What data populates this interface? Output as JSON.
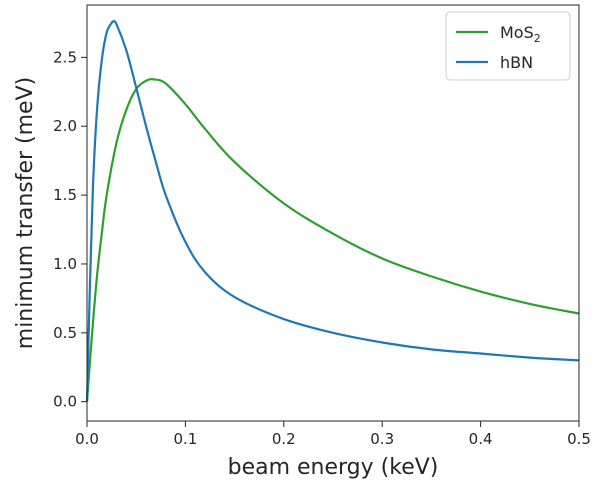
{
  "chart_data": {
    "type": "line",
    "title": "",
    "xlabel": "beam energy (keV)",
    "ylabel": "minimum transfer (meV)",
    "xlim": [
      0.0,
      0.5
    ],
    "ylim": [
      -0.14,
      2.88
    ],
    "x_ticks": [
      "0.0",
      "0.1",
      "0.2",
      "0.3",
      "0.4",
      "0.5"
    ],
    "y_ticks": [
      "0.0",
      "0.5",
      "1.0",
      "1.5",
      "2.0",
      "2.5"
    ],
    "grid": false,
    "legend_position": "top-right",
    "series": [
      {
        "name": "MoS",
        "name_subscript": "2",
        "color": "#2ca02c",
        "peak": {
          "x": 0.068,
          "y": 2.34
        },
        "values": [
          {
            "x": 0.0,
            "y": 0.0
          },
          {
            "x": 0.005,
            "y": 0.48
          },
          {
            "x": 0.01,
            "y": 0.9
          },
          {
            "x": 0.015,
            "y": 1.22
          },
          {
            "x": 0.02,
            "y": 1.5
          },
          {
            "x": 0.03,
            "y": 1.88
          },
          {
            "x": 0.04,
            "y": 2.12
          },
          {
            "x": 0.05,
            "y": 2.27
          },
          {
            "x": 0.06,
            "y": 2.33
          },
          {
            "x": 0.068,
            "y": 2.34
          },
          {
            "x": 0.08,
            "y": 2.31
          },
          {
            "x": 0.1,
            "y": 2.16
          },
          {
            "x": 0.12,
            "y": 1.98
          },
          {
            "x": 0.15,
            "y": 1.74
          },
          {
            "x": 0.2,
            "y": 1.44
          },
          {
            "x": 0.25,
            "y": 1.22
          },
          {
            "x": 0.3,
            "y": 1.04
          },
          {
            "x": 0.35,
            "y": 0.91
          },
          {
            "x": 0.4,
            "y": 0.8
          },
          {
            "x": 0.45,
            "y": 0.71
          },
          {
            "x": 0.5,
            "y": 0.64
          }
        ]
      },
      {
        "name": "hBN",
        "color": "#1f77b4",
        "peak": {
          "x": 0.027,
          "y": 2.76
        },
        "values": [
          {
            "x": 0.0,
            "y": 0.0
          },
          {
            "x": 0.003,
            "y": 0.85
          },
          {
            "x": 0.006,
            "y": 1.55
          },
          {
            "x": 0.01,
            "y": 2.1
          },
          {
            "x": 0.015,
            "y": 2.48
          },
          {
            "x": 0.02,
            "y": 2.68
          },
          {
            "x": 0.025,
            "y": 2.75
          },
          {
            "x": 0.027,
            "y": 2.76
          },
          {
            "x": 0.03,
            "y": 2.74
          },
          {
            "x": 0.04,
            "y": 2.55
          },
          {
            "x": 0.05,
            "y": 2.28
          },
          {
            "x": 0.06,
            "y": 2.0
          },
          {
            "x": 0.07,
            "y": 1.74
          },
          {
            "x": 0.08,
            "y": 1.5
          },
          {
            "x": 0.1,
            "y": 1.16
          },
          {
            "x": 0.12,
            "y": 0.94
          },
          {
            "x": 0.15,
            "y": 0.76
          },
          {
            "x": 0.2,
            "y": 0.6
          },
          {
            "x": 0.25,
            "y": 0.5
          },
          {
            "x": 0.3,
            "y": 0.43
          },
          {
            "x": 0.35,
            "y": 0.38
          },
          {
            "x": 0.4,
            "y": 0.35
          },
          {
            "x": 0.45,
            "y": 0.32
          },
          {
            "x": 0.5,
            "y": 0.3
          }
        ]
      }
    ]
  }
}
